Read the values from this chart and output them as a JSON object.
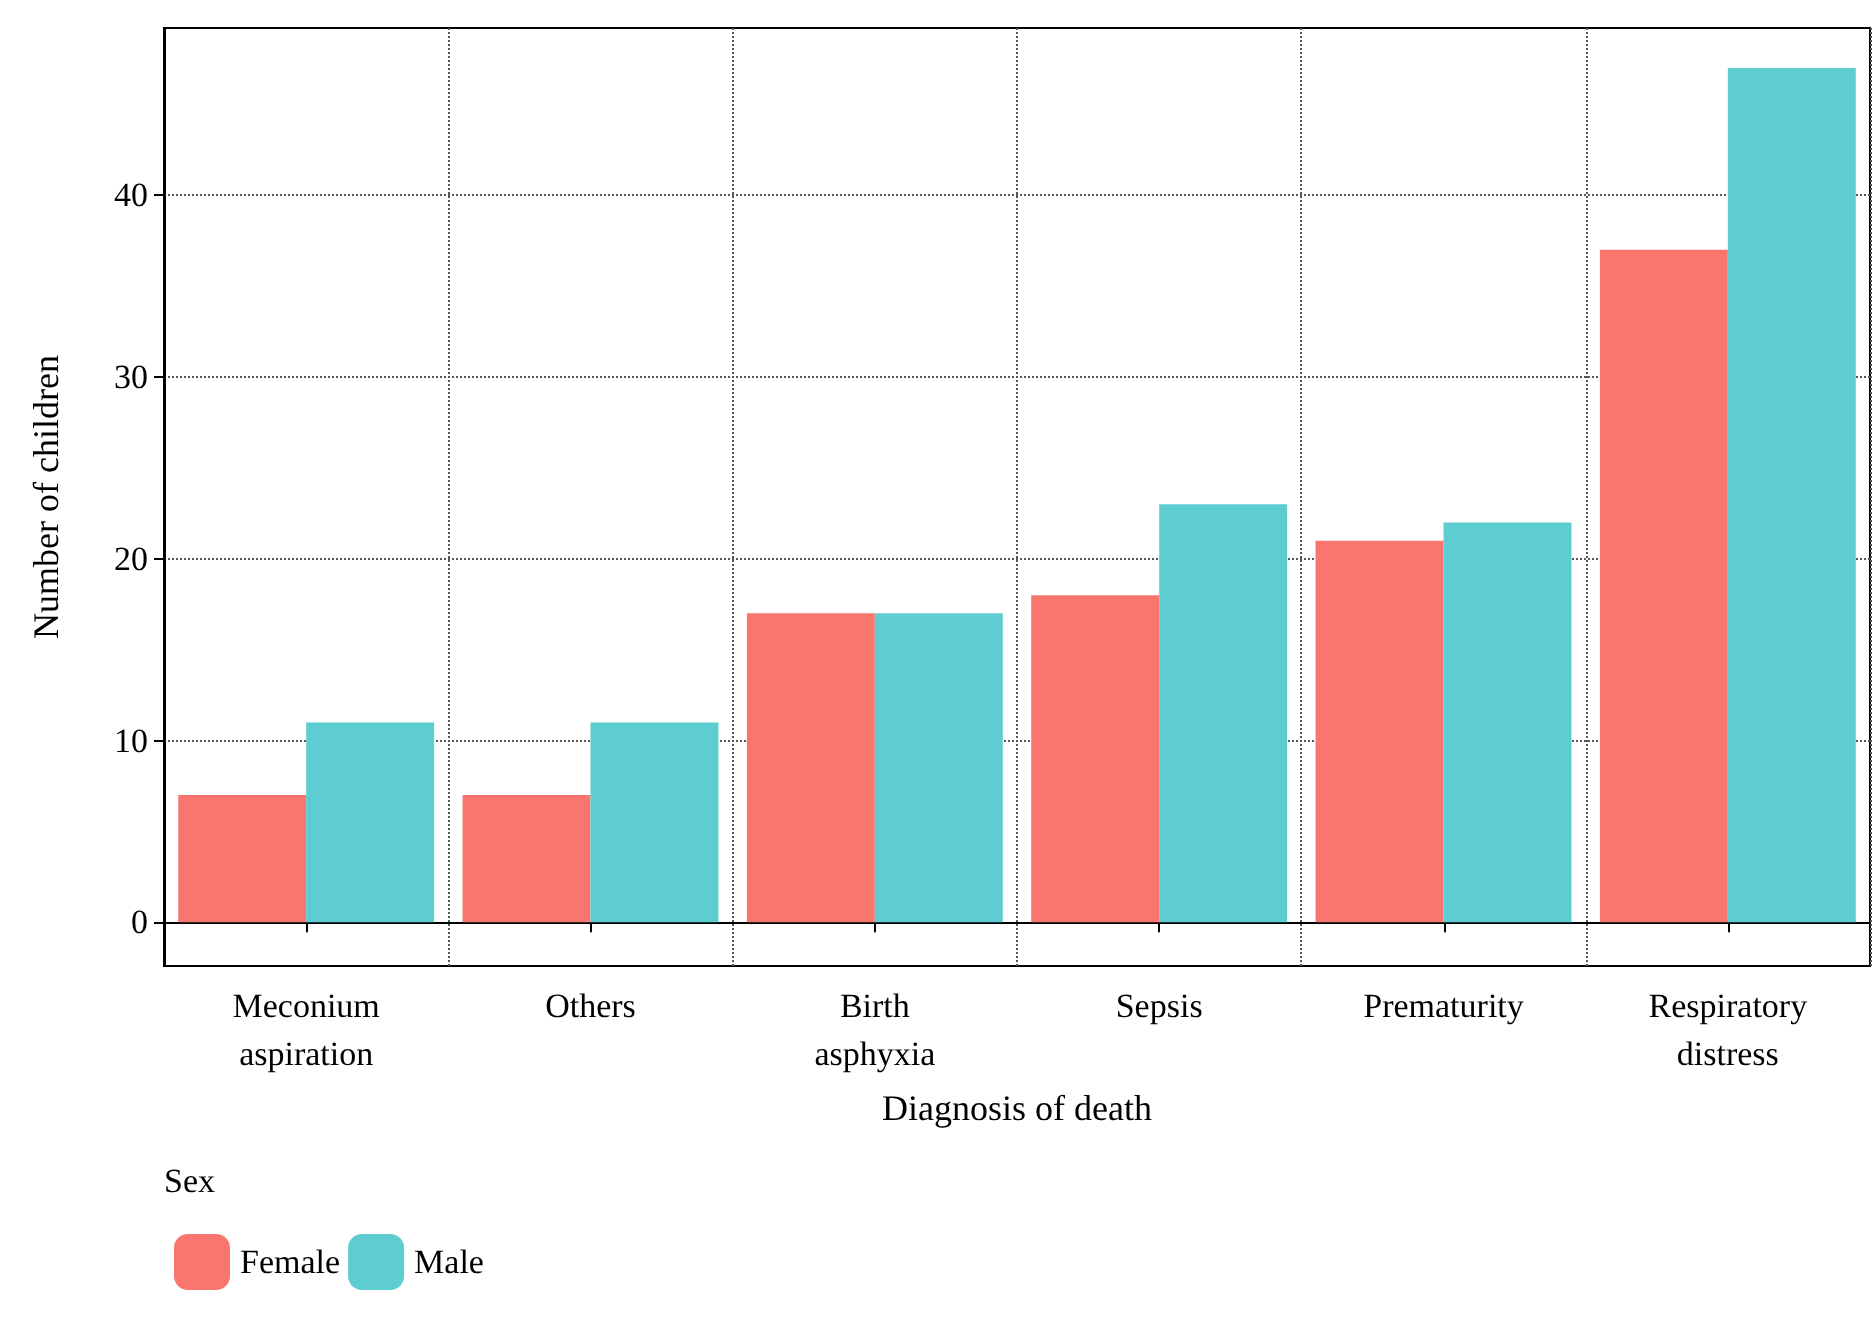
{
  "chart_data": {
    "type": "bar",
    "xlabel": "Diagnosis of death",
    "ylabel": "Number of children",
    "legend_title": "Sex",
    "categories": [
      "Meconium aspiration",
      "Others",
      "Birth asphyxia",
      "Sepsis",
      "Prematurity",
      "Respiratory distress"
    ],
    "series": [
      {
        "name": "Female",
        "color": "#f8766d",
        "values": [
          7,
          7,
          17,
          18,
          21,
          37
        ]
      },
      {
        "name": "Male",
        "color": "#5ecdd1",
        "values": [
          11,
          11,
          17,
          23,
          22,
          47
        ]
      }
    ],
    "ylim": [
      -2.4,
      49.2
    ],
    "yticks": [
      0,
      10,
      20,
      30,
      40
    ],
    "grid": true,
    "legend": "bottom left"
  }
}
